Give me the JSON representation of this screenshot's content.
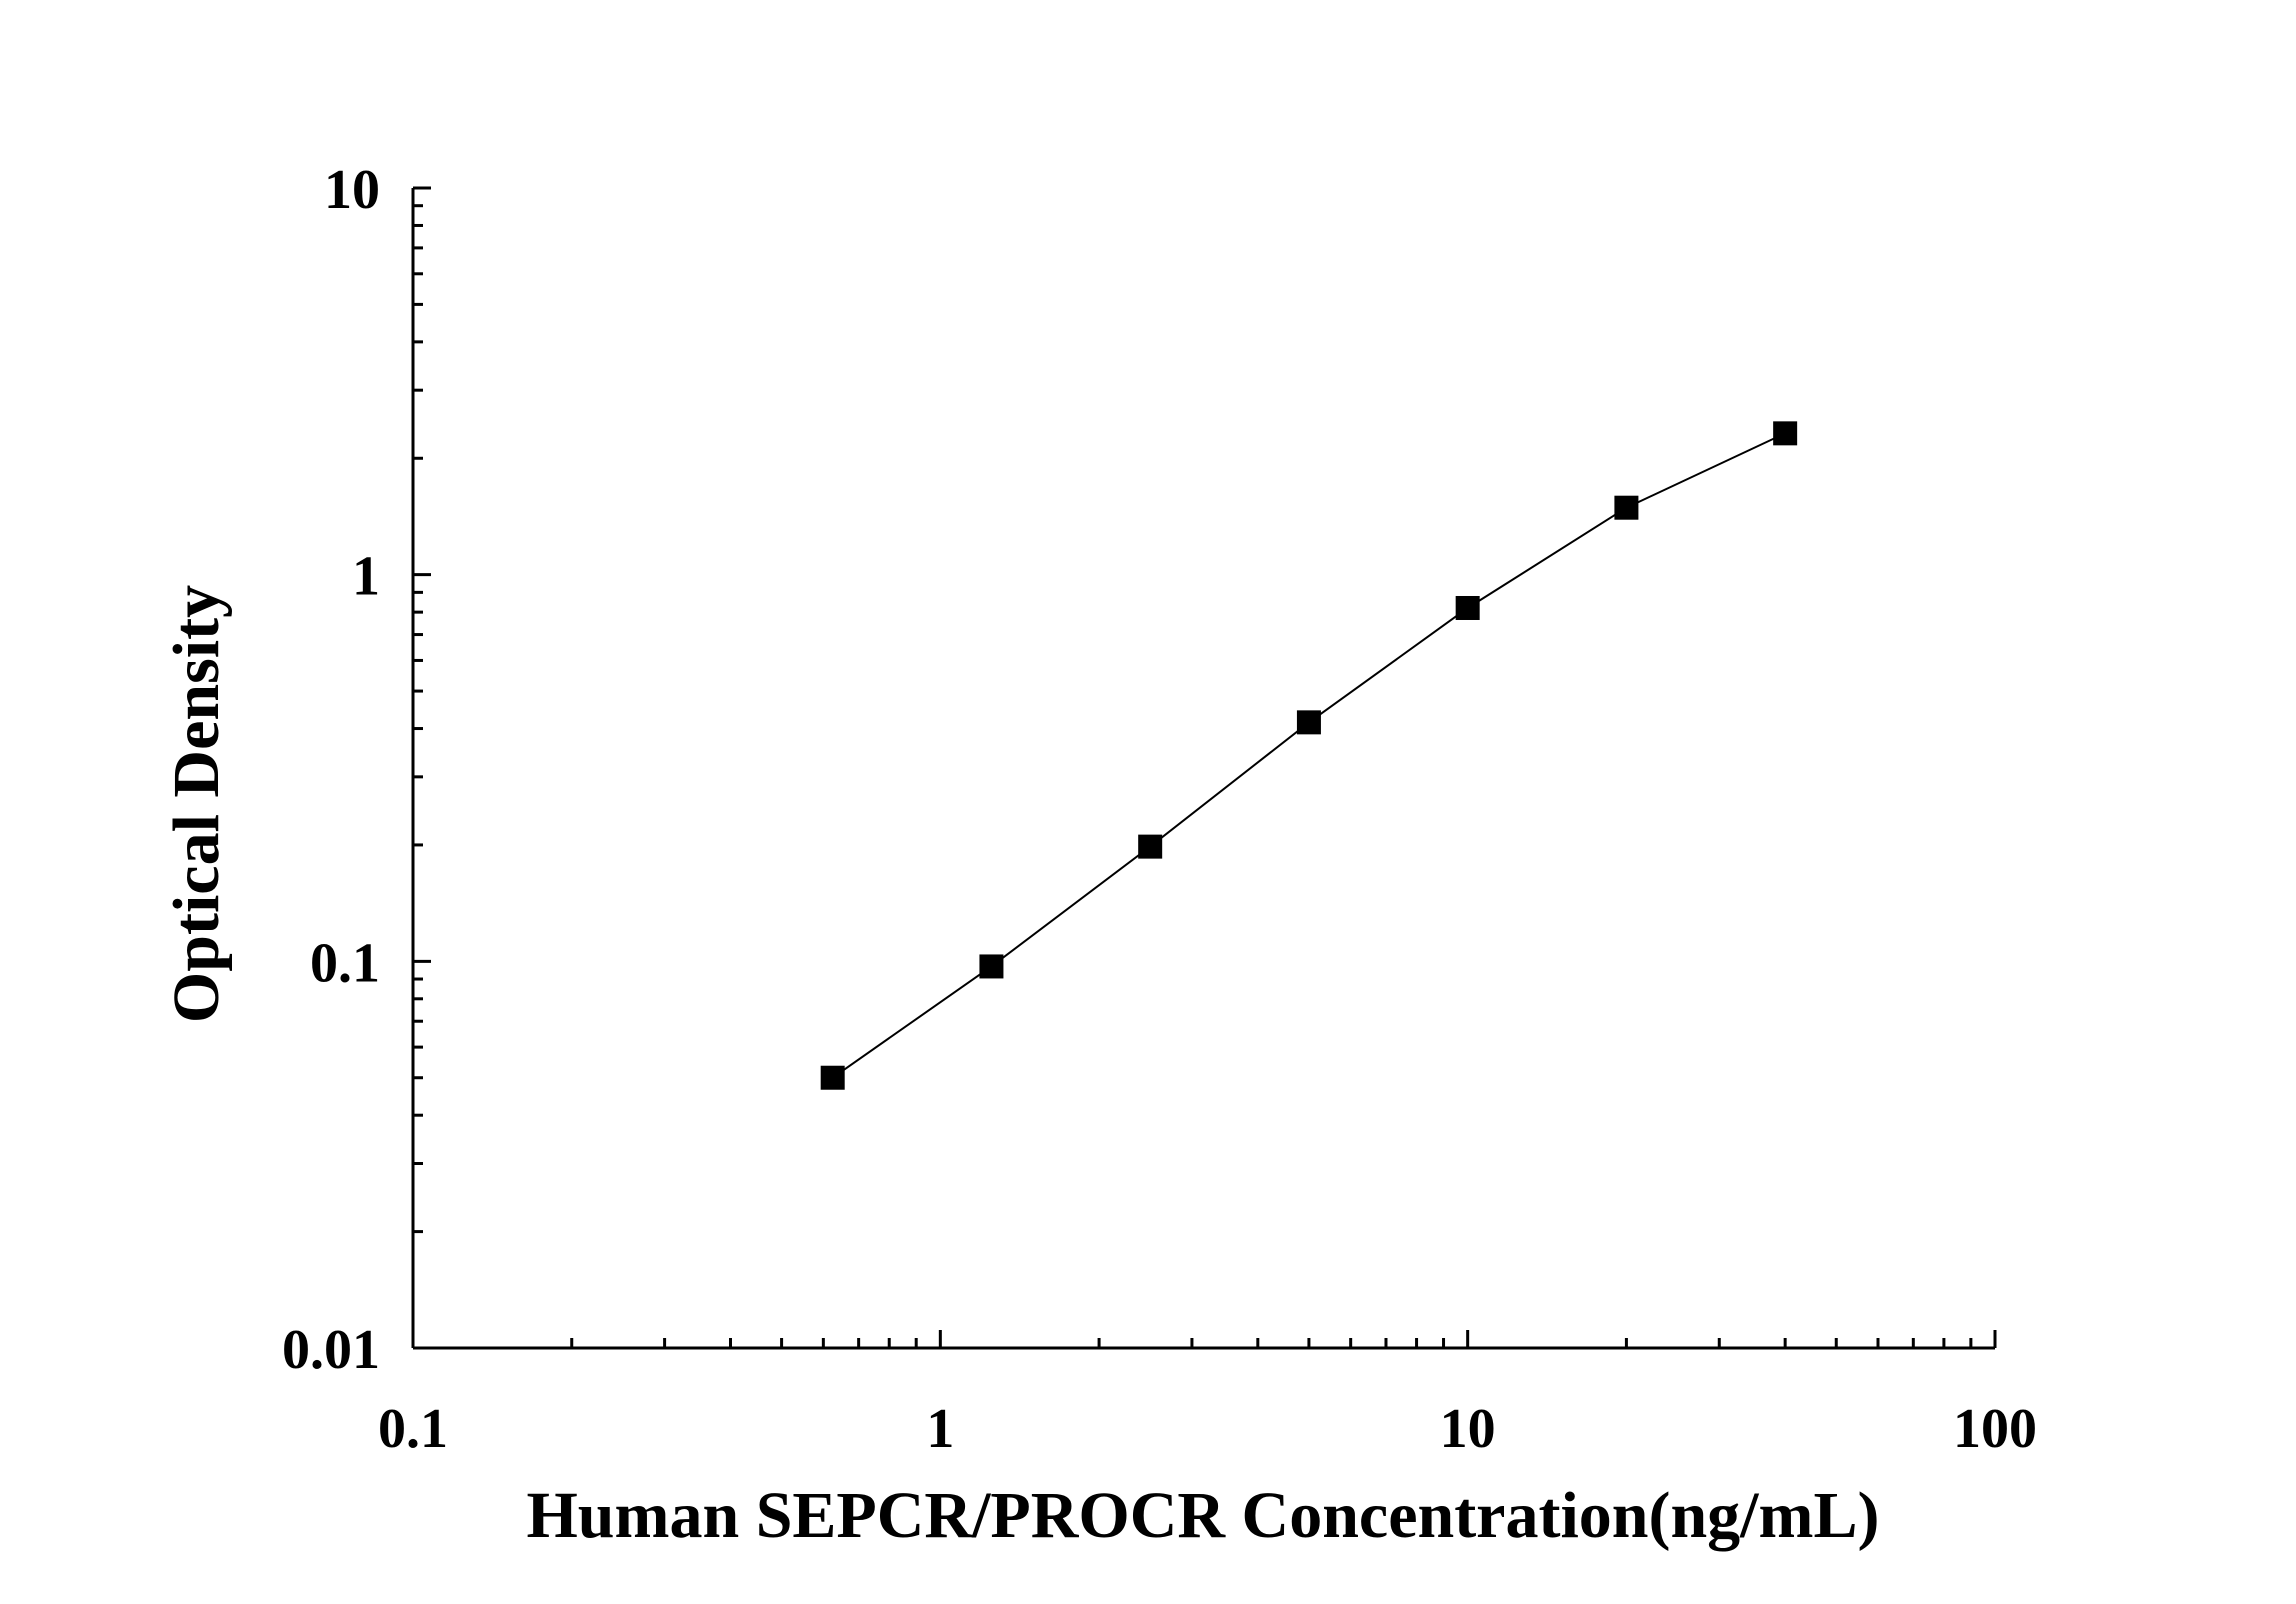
{
  "chart_data": {
    "type": "scatter",
    "xlabel": "Human SEPCR/PROCR Concentration(ng/mL)",
    "ylabel": "Optical Density",
    "xscale": "log",
    "yscale": "log",
    "xlim": [
      0.1,
      100
    ],
    "ylim": [
      0.01,
      10
    ],
    "x_tick_labels": [
      "0.1",
      "1",
      "10",
      "100"
    ],
    "y_tick_labels": [
      "0.01",
      "0.1",
      "1",
      "10"
    ],
    "grid": false,
    "legend": "none",
    "marker": "square",
    "connect_points": true,
    "color": "#000000",
    "series": [
      {
        "x": [
          0.625,
          1.25,
          2.5,
          5,
          10,
          20,
          40
        ],
        "y": [
          0.05,
          0.097,
          0.198,
          0.415,
          0.82,
          1.49,
          2.32
        ]
      }
    ]
  }
}
